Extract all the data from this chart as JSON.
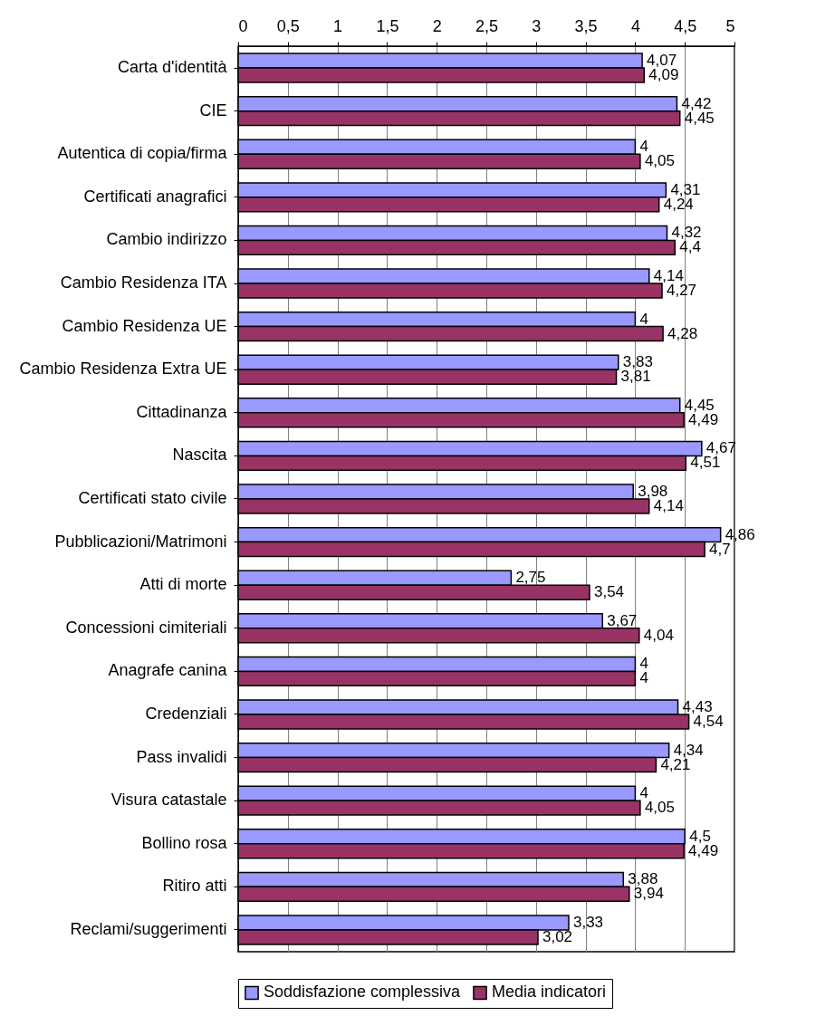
{
  "chart_data": {
    "type": "bar",
    "orientation": "horizontal",
    "categories": [
      "Carta d'identità",
      "CIE",
      "Autentica di copia/firma",
      "Certificati anagrafici",
      "Cambio indirizzo",
      "Cambio Residenza ITA",
      "Cambio Residenza UE",
      "Cambio Residenza Extra UE",
      "Cittadinanza",
      "Nascita",
      "Certificati stato civile",
      "Pubblicazioni/Matrimoni",
      "Atti di morte",
      "Concessioni cimiteriali",
      "Anagrafe canina",
      "Credenziali",
      "Pass invalidi",
      "Visura catastale",
      "Bollino rosa",
      "Ritiro atti",
      "Reclami/suggerimenti"
    ],
    "series": [
      {
        "name": "Soddisfazione complessiva",
        "color": "#9999ff",
        "values": [
          4.07,
          4.42,
          4,
          4.31,
          4.32,
          4.14,
          4,
          3.83,
          4.45,
          4.67,
          3.98,
          4.86,
          2.75,
          3.67,
          4,
          4.43,
          4.34,
          4,
          4.5,
          3.88,
          3.33
        ],
        "value_labels": [
          "4,07",
          "4,42",
          "4",
          "4,31",
          "4,32",
          "4,14",
          "4",
          "3,83",
          "4,45",
          "4,67",
          "3,98",
          "4,86",
          "2,75",
          "3,67",
          "4",
          "4,43",
          "4,34",
          "4",
          "4,5",
          "3,88",
          "3,33"
        ]
      },
      {
        "name": "Media indicatori",
        "color": "#993366",
        "values": [
          4.09,
          4.45,
          4.05,
          4.24,
          4.4,
          4.27,
          4.28,
          3.81,
          4.49,
          4.51,
          4.14,
          4.7,
          3.54,
          4.04,
          4,
          4.54,
          4.21,
          4.05,
          4.49,
          3.94,
          3.02
        ],
        "value_labels": [
          "4,09",
          "4,45",
          "4,05",
          "4,24",
          "4,4",
          "4,27",
          "4,28",
          "3,81",
          "4,49",
          "4,51",
          "4,14",
          "4,7",
          "3,54",
          "4,04",
          "4",
          "4,54",
          "4,21",
          "4,05",
          "4,49",
          "3,94",
          "3,02"
        ]
      }
    ],
    "xlim": [
      0,
      5
    ],
    "xticks": [
      0,
      {
        "value": 0.5,
        "label": "0,5"
      },
      1,
      {
        "value": 1.5,
        "label": "1,5"
      },
      2,
      {
        "value": 2.5,
        "label": "2,5"
      },
      3,
      {
        "value": 3.5,
        "label": "3,5"
      },
      4,
      {
        "value": 4.5,
        "label": "4,5"
      },
      5
    ],
    "grid": "x",
    "legend": "bottom"
  }
}
